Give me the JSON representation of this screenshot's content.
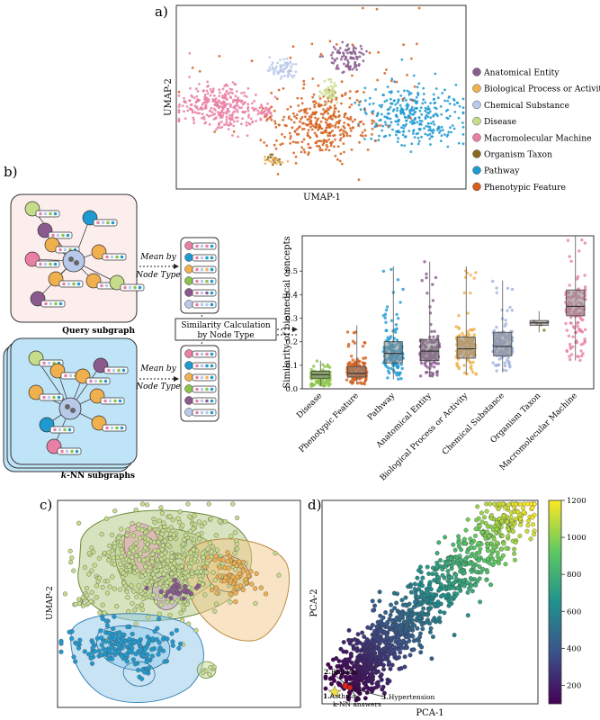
{
  "panels": {
    "a": {
      "label": "a)",
      "xlabel": "UMAP-1",
      "ylabel": "UMAP-2",
      "legend": [
        {
          "name": "Anatomical Entity",
          "color": "#8a5a8f"
        },
        {
          "name": "Biological Process or Activity",
          "color": "#f0b04e"
        },
        {
          "name": "Chemical Substance",
          "color": "#b9c9ea"
        },
        {
          "name": "Disease",
          "color": "#c6dc8a"
        },
        {
          "name": "Macromolecular Machine",
          "color": "#e97fa6"
        },
        {
          "name": "Organism Taxon",
          "color": "#8b6a1e"
        },
        {
          "name": "Pathway",
          "color": "#1f9ad1"
        },
        {
          "name": "Phenotypic Feature",
          "color": "#d4601c"
        }
      ]
    },
    "b": {
      "label": "b)",
      "query_label": "Query subgraph",
      "knn_label_k": "k",
      "knn_label_rest": "-NN subgraphs",
      "mean_label_1": "Mean by",
      "mean_label_2": "Node Type",
      "sim_label_1": "Similarity Calculation",
      "sim_label_2": "by Node Type"
    },
    "c": {
      "label": "c)",
      "ylabel": "UMAP-2"
    },
    "d": {
      "label": "d)",
      "xlabel": "PCA-1",
      "ylabel": "PCA-2",
      "colorbar_ticks": [
        "200",
        "400",
        "600",
        "800",
        "1000",
        "1200"
      ],
      "annotations": {
        "asthma": "Asthma",
        "asthma_num": "1.",
        "rhinitis": "Rhinitis",
        "rhinitis_num": "2.",
        "hypertension": "Hypertension",
        "hypertension_num": "3.",
        "knn": "k-NN answers"
      }
    }
  },
  "chart_data": {
    "type": "box",
    "ylabel": "Similarity of biomedical concepts",
    "ylim": [
      0,
      0.65
    ],
    "yticks": [
      "0.0",
      "0.1",
      "0.2",
      "0.3",
      "0.4",
      "0.5"
    ],
    "categories": [
      "Disease",
      "Phenotypic Feature",
      "Pathway",
      "Anatomical Entity",
      "Biological Process or Activity",
      "Chemical Substance",
      "Organism Taxon",
      "Macromolecular Machine"
    ],
    "colors": [
      "#8cc34a",
      "#d4601c",
      "#1f9ad1",
      "#8a5a8f",
      "#f0b04e",
      "#9fb3dd",
      "#8b6a1e",
      "#e97fa6"
    ],
    "boxes": [
      {
        "min": 0.01,
        "q1": 0.045,
        "median": 0.06,
        "q3": 0.075,
        "max": 0.12
      },
      {
        "min": 0.02,
        "q1": 0.05,
        "median": 0.065,
        "q3": 0.095,
        "max": 0.27
      },
      {
        "min": 0.04,
        "q1": 0.11,
        "median": 0.15,
        "q3": 0.2,
        "max": 0.52
      },
      {
        "min": 0.05,
        "q1": 0.12,
        "median": 0.16,
        "q3": 0.21,
        "max": 0.54
      },
      {
        "min": 0.06,
        "q1": 0.13,
        "median": 0.17,
        "q3": 0.22,
        "max": 0.52
      },
      {
        "min": 0.07,
        "q1": 0.14,
        "median": 0.18,
        "q3": 0.24,
        "max": 0.46
      },
      {
        "min": 0.24,
        "q1": 0.27,
        "median": 0.28,
        "q3": 0.29,
        "max": 0.33
      },
      {
        "min": 0.12,
        "q1": 0.31,
        "median": 0.35,
        "q3": 0.42,
        "max": 0.65
      }
    ]
  }
}
